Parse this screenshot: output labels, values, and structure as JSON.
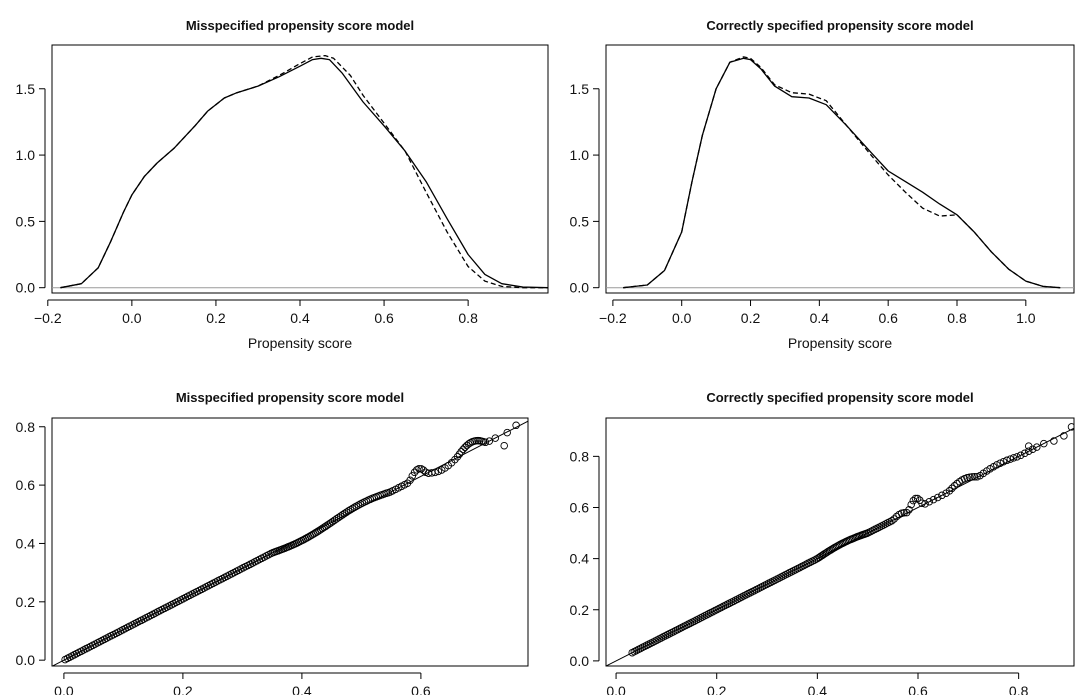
{
  "chart_data": [
    {
      "id": "density_misspecified",
      "type": "line",
      "title": "Misspecified propensity score model",
      "xlabel": "Propensity score",
      "ylabel": "",
      "xlim": [
        -0.19,
        0.99
      ],
      "ylim": [
        -0.04,
        1.83
      ],
      "xticks": [
        "-0.2",
        "0.0",
        "0.2",
        "0.4",
        "0.6",
        "0.8"
      ],
      "xtick_values": [
        -0.2,
        0.0,
        0.2,
        0.4,
        0.6,
        0.8
      ],
      "yticks": [
        "0.0",
        "0.5",
        "1.0",
        "1.5"
      ],
      "ytick_values": [
        0.0,
        0.5,
        1.0,
        1.5
      ],
      "grid": false,
      "legend": "none",
      "baseline": 0,
      "series": [
        {
          "style": "solid",
          "x": [
            -0.17,
            -0.12,
            -0.08,
            -0.05,
            -0.02,
            0.0,
            0.03,
            0.06,
            0.1,
            0.15,
            0.18,
            0.22,
            0.25,
            0.3,
            0.35,
            0.4,
            0.43,
            0.45,
            0.47,
            0.5,
            0.55,
            0.6,
            0.65,
            0.7,
            0.75,
            0.8,
            0.84,
            0.88,
            0.93,
            0.99
          ],
          "y": [
            0.0,
            0.03,
            0.15,
            0.35,
            0.57,
            0.7,
            0.84,
            0.94,
            1.05,
            1.22,
            1.33,
            1.43,
            1.47,
            1.52,
            1.59,
            1.67,
            1.72,
            1.73,
            1.72,
            1.62,
            1.4,
            1.22,
            1.03,
            0.8,
            0.52,
            0.25,
            0.1,
            0.03,
            0.005,
            0.0
          ]
        },
        {
          "style": "dashed",
          "x": [
            -0.17,
            -0.12,
            -0.08,
            -0.05,
            -0.02,
            0.0,
            0.03,
            0.06,
            0.1,
            0.15,
            0.18,
            0.22,
            0.25,
            0.3,
            0.35,
            0.4,
            0.43,
            0.46,
            0.48,
            0.52,
            0.55,
            0.6,
            0.65,
            0.7,
            0.75,
            0.8,
            0.84,
            0.88,
            0.93,
            0.99
          ],
          "y": [
            0.0,
            0.03,
            0.15,
            0.35,
            0.57,
            0.7,
            0.84,
            0.94,
            1.05,
            1.22,
            1.33,
            1.43,
            1.47,
            1.52,
            1.6,
            1.69,
            1.74,
            1.75,
            1.73,
            1.6,
            1.45,
            1.24,
            1.03,
            0.72,
            0.42,
            0.16,
            0.05,
            0.01,
            0.0,
            0.0
          ]
        }
      ]
    },
    {
      "id": "density_correct",
      "type": "line",
      "title": "Correctly specified propensity score model",
      "xlabel": "Propensity score",
      "ylabel": "",
      "xlim": [
        -0.22,
        1.14
      ],
      "ylim": [
        -0.04,
        1.83
      ],
      "xticks": [
        "-0.2",
        "0.0",
        "0.2",
        "0.4",
        "0.6",
        "0.8",
        "1.0"
      ],
      "xtick_values": [
        -0.2,
        0.0,
        0.2,
        0.4,
        0.6,
        0.8,
        1.0
      ],
      "yticks": [
        "0.0",
        "0.5",
        "1.0",
        "1.5"
      ],
      "ytick_values": [
        0.0,
        0.5,
        1.0,
        1.5
      ],
      "grid": false,
      "legend": "none",
      "baseline": 0,
      "series": [
        {
          "style": "solid",
          "x": [
            -0.17,
            -0.1,
            -0.05,
            0.0,
            0.03,
            0.06,
            0.1,
            0.14,
            0.18,
            0.2,
            0.23,
            0.27,
            0.32,
            0.37,
            0.42,
            0.48,
            0.55,
            0.6,
            0.65,
            0.7,
            0.75,
            0.8,
            0.85,
            0.9,
            0.95,
            1.0,
            1.05,
            1.1
          ],
          "y": [
            0.0,
            0.02,
            0.13,
            0.42,
            0.8,
            1.15,
            1.5,
            1.7,
            1.73,
            1.72,
            1.65,
            1.52,
            1.44,
            1.43,
            1.38,
            1.22,
            1.02,
            0.88,
            0.8,
            0.72,
            0.63,
            0.55,
            0.42,
            0.27,
            0.14,
            0.05,
            0.01,
            0.0
          ]
        },
        {
          "style": "dashed",
          "x": [
            -0.17,
            -0.1,
            -0.05,
            0.0,
            0.03,
            0.06,
            0.1,
            0.14,
            0.18,
            0.2,
            0.23,
            0.27,
            0.32,
            0.37,
            0.42,
            0.48,
            0.55,
            0.6,
            0.65,
            0.7,
            0.75,
            0.8,
            0.85,
            0.9,
            0.95,
            1.0,
            1.05,
            1.1
          ],
          "y": [
            0.0,
            0.02,
            0.13,
            0.42,
            0.8,
            1.15,
            1.5,
            1.7,
            1.74,
            1.73,
            1.66,
            1.53,
            1.47,
            1.46,
            1.41,
            1.22,
            1.0,
            0.85,
            0.72,
            0.6,
            0.54,
            0.55,
            0.42,
            0.27,
            0.14,
            0.05,
            0.01,
            0.0
          ]
        }
      ]
    },
    {
      "id": "qq_misspecified",
      "type": "scatter",
      "title": "Misspecified propensity score model",
      "xlabel": "",
      "ylabel": "",
      "xlim": [
        -0.02,
        0.78
      ],
      "ylim": [
        -0.02,
        0.83
      ],
      "xticks": [
        "0.0",
        "0.2",
        "0.4",
        "0.6"
      ],
      "xtick_values": [
        0.0,
        0.2,
        0.4,
        0.6
      ],
      "yticks": [
        "0.0",
        "0.2",
        "0.4",
        "0.6",
        "0.8"
      ],
      "ytick_values": [
        0.0,
        0.2,
        0.4,
        0.6,
        0.8
      ],
      "grid": false,
      "legend": "none",
      "reference_line": {
        "slope": 1.05,
        "intercept": 0.0
      },
      "segments": [
        {
          "x_from": 0.0,
          "x_to": 0.35,
          "n": 90,
          "dev": 0.0
        },
        {
          "x_from": 0.35,
          "x_to": 0.45,
          "n": 35,
          "dev": -0.01
        },
        {
          "x_from": 0.45,
          "x_to": 0.55,
          "n": 30,
          "dev": 0.012
        },
        {
          "x_from": 0.55,
          "x_to": 0.58,
          "n": 6,
          "dev": 0.0
        },
        {
          "x_from": 0.58,
          "x_to": 0.61,
          "n": 8,
          "dev": 0.03
        },
        {
          "x_from": 0.61,
          "x_to": 0.66,
          "n": 9,
          "dev": -0.015
        },
        {
          "x_from": 0.66,
          "x_to": 0.71,
          "n": 16,
          "dev": 0.028
        },
        {
          "x_from": 0.71,
          "x_to": 0.73,
          "n": 2,
          "dev": 0.0
        }
      ],
      "outliers": [
        [
          0.74,
          0.735
        ],
        [
          0.745,
          0.78
        ],
        [
          0.76,
          0.805
        ]
      ]
    },
    {
      "id": "qq_correct",
      "type": "scatter",
      "title": "Correctly specified propensity score model",
      "xlabel": "",
      "ylabel": "",
      "xlim": [
        -0.02,
        0.91
      ],
      "ylim": [
        -0.02,
        0.95
      ],
      "xticks": [
        "0.0",
        "0.2",
        "0.4",
        "0.6",
        "0.8"
      ],
      "xtick_values": [
        0.0,
        0.2,
        0.4,
        0.6,
        0.8
      ],
      "yticks": [
        "0.0",
        "0.2",
        "0.4",
        "0.6",
        "0.8"
      ],
      "ytick_values": [
        0.0,
        0.2,
        0.4,
        0.6,
        0.8
      ],
      "grid": false,
      "legend": "none",
      "reference_line": {
        "slope": 1.0,
        "intercept": 0.0
      },
      "segments": [
        {
          "x_from": 0.03,
          "x_to": 0.4,
          "n": 90,
          "dev": 0.0
        },
        {
          "x_from": 0.4,
          "x_to": 0.5,
          "n": 35,
          "dev": 0.01
        },
        {
          "x_from": 0.5,
          "x_to": 0.55,
          "n": 12,
          "dev": 0.0
        },
        {
          "x_from": 0.55,
          "x_to": 0.58,
          "n": 6,
          "dev": 0.01
        },
        {
          "x_from": 0.58,
          "x_to": 0.61,
          "n": 7,
          "dev": 0.04
        },
        {
          "x_from": 0.61,
          "x_to": 0.66,
          "n": 6,
          "dev": 0.0
        },
        {
          "x_from": 0.66,
          "x_to": 0.72,
          "n": 12,
          "dev": 0.02
        },
        {
          "x_from": 0.72,
          "x_to": 0.8,
          "n": 12,
          "dev": 0.01
        },
        {
          "x_from": 0.8,
          "x_to": 0.84,
          "n": 5,
          "dev": 0.0
        }
      ],
      "outliers": [
        [
          0.82,
          0.84
        ],
        [
          0.85,
          0.85
        ],
        [
          0.87,
          0.86
        ],
        [
          0.89,
          0.88
        ],
        [
          0.905,
          0.915
        ]
      ]
    }
  ]
}
